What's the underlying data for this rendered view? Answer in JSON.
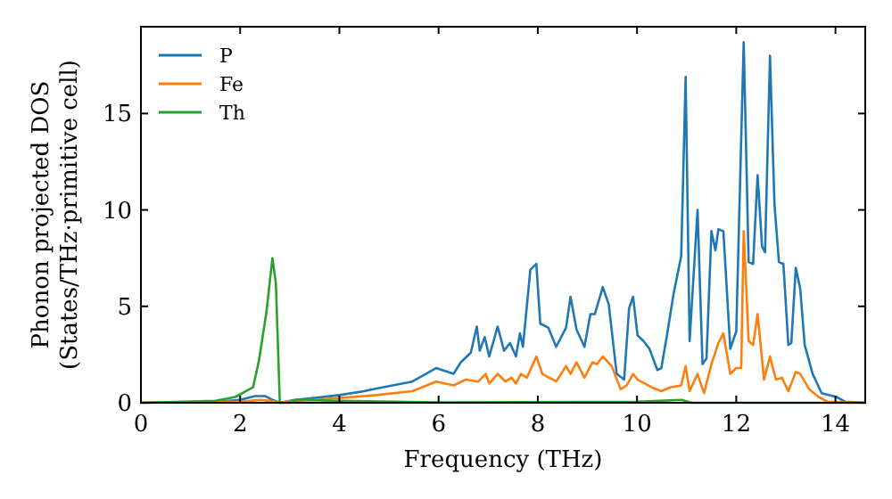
{
  "chart_data": {
    "type": "line",
    "xlabel": "Frequency (THz)",
    "ylabel": "Phonon projected DOS\n(States/THz·primitive cell)",
    "xlim": [
      0,
      14.6
    ],
    "ylim": [
      0,
      19.5
    ],
    "xticks": [
      0,
      2,
      4,
      6,
      8,
      10,
      12,
      14
    ],
    "yticks": [
      0,
      5,
      10,
      15
    ],
    "legend": "top left",
    "grid": false,
    "line_style": "solid",
    "marker": "none",
    "series": [
      {
        "name": "P",
        "color": "#1f77b4",
        "x": [
          0,
          1.5,
          2.0,
          2.3,
          2.5,
          2.65,
          2.8,
          3.1,
          3.5,
          4,
          4.5,
          4.75,
          5.47,
          5.95,
          6.3,
          6.45,
          6.65,
          6.77,
          6.83,
          6.93,
          7.02,
          7.19,
          7.32,
          7.44,
          7.56,
          7.64,
          7.7,
          7.85,
          7.97,
          8.05,
          8.21,
          8.37,
          8.57,
          8.66,
          8.78,
          8.94,
          9.06,
          9.15,
          9.31,
          9.43,
          9.59,
          9.74,
          9.84,
          9.92,
          10.01,
          10.13,
          10.25,
          10.41,
          10.49,
          10.61,
          10.74,
          10.89,
          10.98,
          11.06,
          11.22,
          11.32,
          11.4,
          11.5,
          11.58,
          11.64,
          11.74,
          11.88,
          12.0,
          12.15,
          12.25,
          12.34,
          12.43,
          12.52,
          12.58,
          12.68,
          12.77,
          12.86,
          12.95,
          13.05,
          13.11,
          13.2,
          13.29,
          13.38,
          13.54,
          13.72,
          14.02,
          14.2,
          14.6
        ],
        "values": [
          0,
          0.05,
          0.15,
          0.35,
          0.35,
          0.15,
          0,
          0.15,
          0.25,
          0.4,
          0.6,
          0.74,
          1.1,
          1.8,
          1.5,
          2.1,
          2.6,
          3.95,
          2.7,
          3.4,
          2.4,
          3.95,
          2.7,
          3.1,
          2.4,
          3.6,
          2.9,
          6.9,
          7.2,
          4.1,
          3.9,
          2.9,
          3.9,
          5.5,
          3.8,
          2.9,
          4.6,
          4.6,
          6.0,
          5.1,
          1.5,
          1.2,
          4.9,
          5.5,
          3.5,
          3.2,
          2.8,
          1.7,
          1.8,
          3.6,
          5.7,
          7.6,
          16.9,
          3.2,
          10.0,
          2.0,
          2.3,
          8.9,
          7.9,
          9.0,
          8.9,
          2.8,
          3.7,
          18.7,
          7.3,
          7.2,
          11.8,
          8.1,
          7.8,
          18.0,
          10.3,
          7.3,
          7.2,
          3.0,
          3.1,
          7.0,
          5.9,
          3.0,
          1.5,
          0.5,
          0.3,
          0.05,
          0
        ]
      },
      {
        "name": "Fe",
        "color": "#ff7f0e",
        "x": [
          0,
          2,
          2.4,
          2.6,
          2.8,
          3.1,
          3.5,
          4,
          4.5,
          4.75,
          5.47,
          5.95,
          6.3,
          6.55,
          6.8,
          6.95,
          7.02,
          7.19,
          7.35,
          7.47,
          7.56,
          7.66,
          7.78,
          7.97,
          8.09,
          8.37,
          8.57,
          8.66,
          8.78,
          8.94,
          9.1,
          9.19,
          9.31,
          9.49,
          9.67,
          9.79,
          9.92,
          10.01,
          10.3,
          10.49,
          10.67,
          10.89,
          10.98,
          11.06,
          11.22,
          11.35,
          11.5,
          11.64,
          11.74,
          11.88,
          12.0,
          12.1,
          12.15,
          12.25,
          12.34,
          12.43,
          12.56,
          12.68,
          12.8,
          12.92,
          13.05,
          13.2,
          13.29,
          13.47,
          13.66,
          13.84,
          14.6
        ],
        "values": [
          0,
          0.05,
          0.15,
          0.1,
          0,
          0.1,
          0.15,
          0.25,
          0.35,
          0.4,
          0.6,
          1.1,
          0.9,
          1.2,
          1.1,
          1.5,
          1.0,
          1.5,
          1.1,
          1.3,
          1.0,
          1.5,
          1.3,
          2.4,
          1.5,
          1.1,
          1.9,
          1.5,
          2.1,
          1.3,
          2.1,
          2.0,
          2.4,
          1.9,
          0.7,
          0.9,
          1.5,
          1.2,
          0.8,
          0.6,
          0.8,
          0.9,
          1.9,
          0.6,
          1.5,
          0.5,
          2.0,
          3.1,
          3.6,
          1.5,
          1.8,
          1.8,
          8.9,
          3.2,
          3.0,
          4.6,
          1.2,
          2.4,
          1.2,
          1.3,
          0.6,
          1.6,
          1.5,
          0.7,
          0.3,
          0.05,
          0
        ]
      },
      {
        "name": "Th",
        "color": "#2ca02c",
        "x": [
          0,
          1.5,
          1.9,
          2.26,
          2.38,
          2.53,
          2.65,
          2.72,
          2.8,
          3.0,
          3.13,
          4,
          6,
          10,
          10.9,
          11.1,
          14.6
        ],
        "values": [
          0,
          0.1,
          0.3,
          0.8,
          2.2,
          4.7,
          7.5,
          6.2,
          0,
          0,
          0.15,
          0.1,
          0.02,
          0.05,
          0.15,
          0,
          0
        ]
      }
    ]
  }
}
